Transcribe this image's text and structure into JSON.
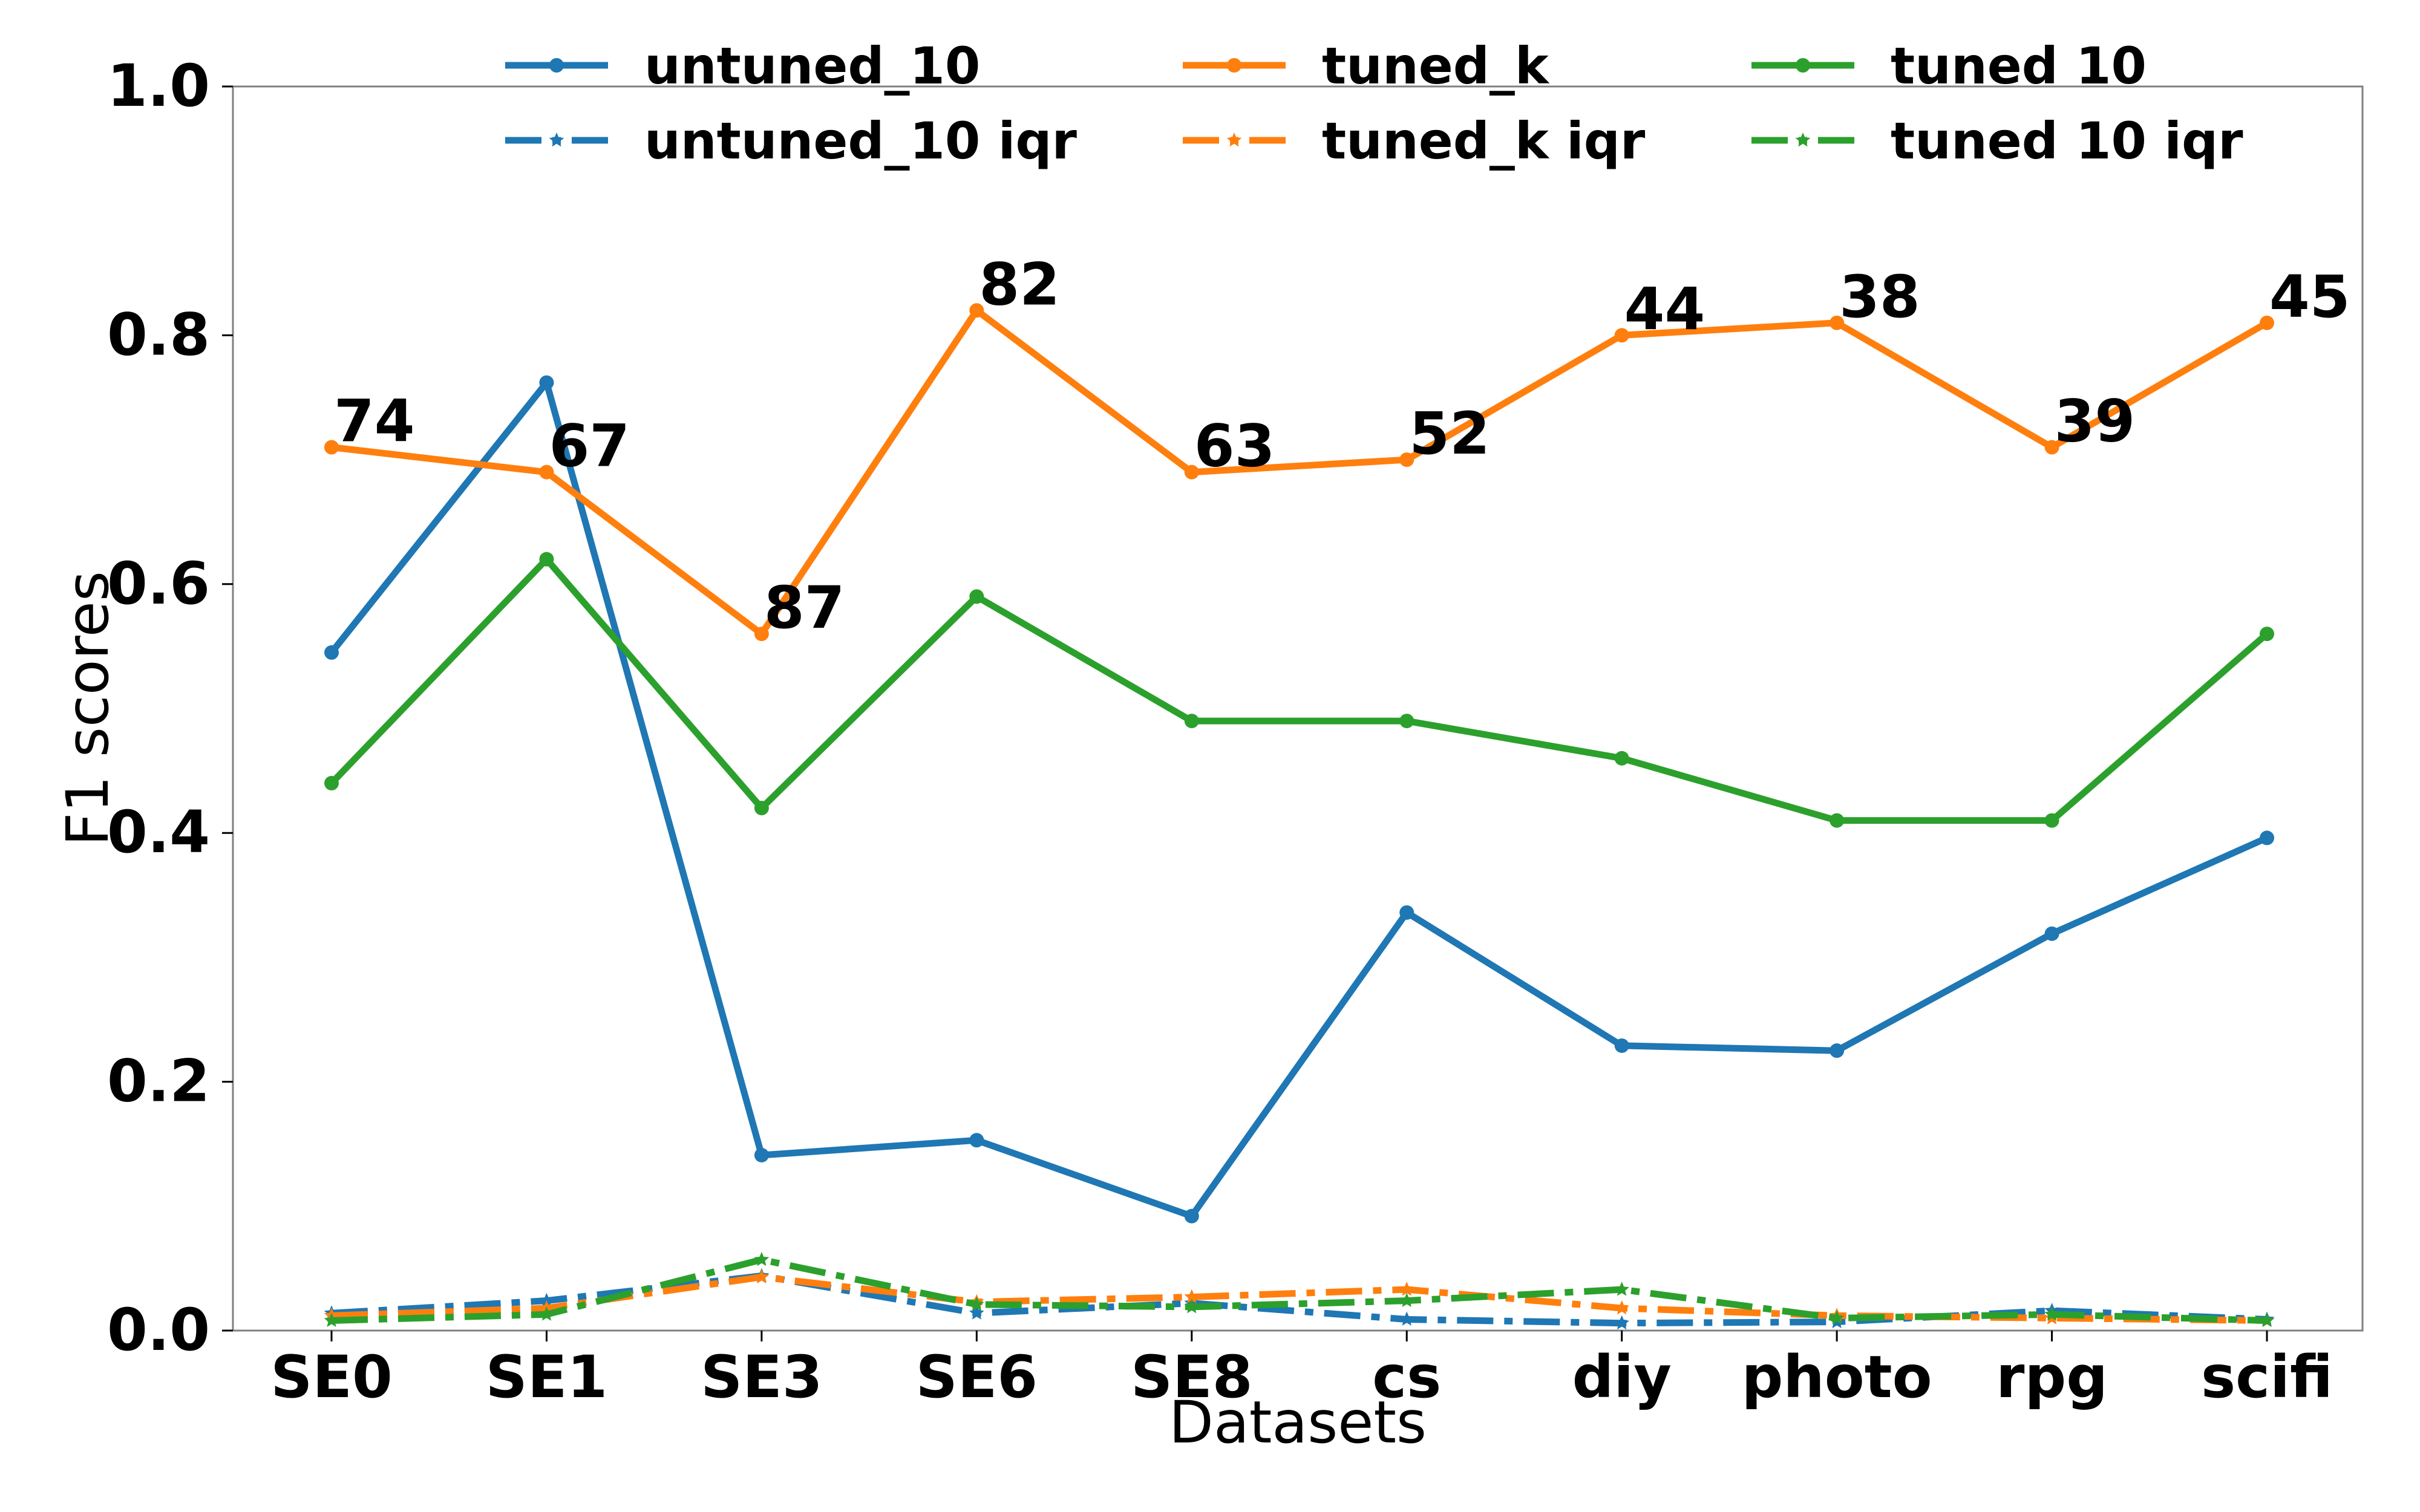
{
  "chart_data": {
    "type": "line",
    "title": "",
    "xlabel": "Datasets",
    "ylabel": "F1 scores",
    "ylim": [
      0,
      1.0
    ],
    "yticks": [
      "0.0",
      "0.2",
      "0.4",
      "0.6",
      "0.8",
      "1.0"
    ],
    "ytick_values": [
      0,
      0.2,
      0.4,
      0.6,
      0.8,
      1.0
    ],
    "categories": [
      "SE0",
      "SE1",
      "SE3",
      "SE6",
      "SE8",
      "cs",
      "diy",
      "photo",
      "rpg",
      "scifi"
    ],
    "legend_position": "top",
    "grid": false,
    "series": [
      {
        "name": "untuned_10",
        "color": "#1f77b4",
        "style": "solid",
        "marker": "circle",
        "values": [
          0.545,
          0.762,
          0.141,
          0.153,
          0.092,
          0.336,
          0.229,
          0.225,
          0.319,
          0.396
        ]
      },
      {
        "name": "tuned_k",
        "color": "#ff7f0e",
        "style": "solid",
        "marker": "circle",
        "values": [
          0.71,
          0.69,
          0.56,
          0.82,
          0.69,
          0.7,
          0.8,
          0.81,
          0.71,
          0.81
        ]
      },
      {
        "name": "tuned 10",
        "color": "#2ca02c",
        "style": "solid",
        "marker": "circle",
        "values": [
          0.44,
          0.62,
          0.42,
          0.59,
          0.49,
          0.49,
          0.46,
          0.41,
          0.41,
          0.56
        ]
      },
      {
        "name": "untuned_10 iqr",
        "color": "#1f77b4",
        "style": "dashdot",
        "marker": "star",
        "values": [
          0.014,
          0.024,
          0.044,
          0.014,
          0.022,
          0.009,
          0.006,
          0.007,
          0.016,
          0.009
        ]
      },
      {
        "name": "tuned_k iqr",
        "color": "#ff7f0e",
        "style": "dashdot",
        "marker": "star",
        "values": [
          0.012,
          0.018,
          0.043,
          0.023,
          0.027,
          0.033,
          0.018,
          0.012,
          0.01,
          0.008
        ]
      },
      {
        "name": "tuned 10 iqr",
        "color": "#2ca02c",
        "style": "dashdot",
        "marker": "star",
        "values": [
          0.008,
          0.013,
          0.057,
          0.021,
          0.019,
          0.024,
          0.033,
          0.01,
          0.013,
          0.008
        ]
      }
    ],
    "annotations": [
      {
        "series": "tuned_k",
        "index": 0,
        "text": "74"
      },
      {
        "series": "tuned_k",
        "index": 1,
        "text": "67"
      },
      {
        "series": "tuned_k",
        "index": 2,
        "text": "87"
      },
      {
        "series": "tuned_k",
        "index": 3,
        "text": "82"
      },
      {
        "series": "tuned_k",
        "index": 4,
        "text": "63"
      },
      {
        "series": "tuned_k",
        "index": 5,
        "text": "52"
      },
      {
        "series": "tuned_k",
        "index": 6,
        "text": "44"
      },
      {
        "series": "tuned_k",
        "index": 7,
        "text": "38"
      },
      {
        "series": "tuned_k",
        "index": 8,
        "text": "39"
      },
      {
        "series": "tuned_k",
        "index": 9,
        "text": "45"
      }
    ],
    "legend": [
      [
        "untuned_10",
        "tuned_k",
        "tuned 10"
      ],
      [
        "untuned_10 iqr",
        "tuned_k iqr",
        "tuned 10 iqr"
      ]
    ]
  }
}
